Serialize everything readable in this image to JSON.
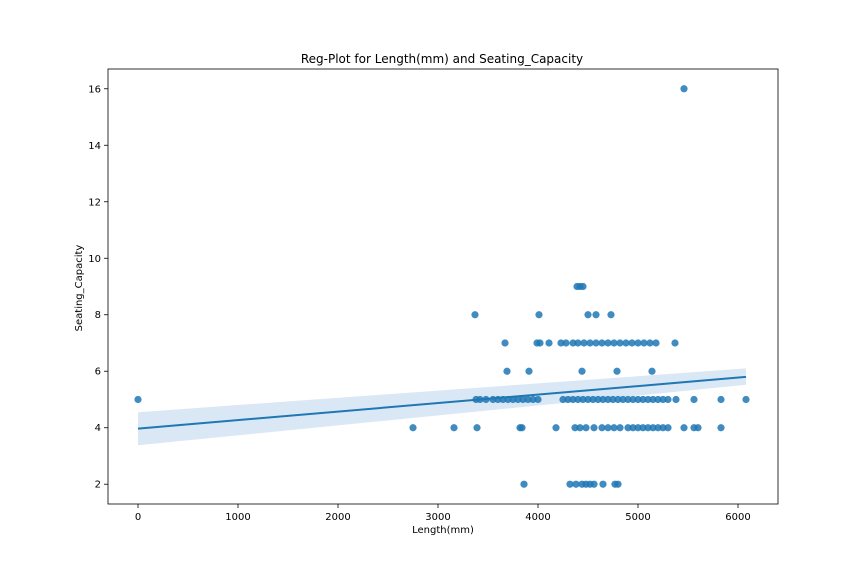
{
  "chart_data": {
    "type": "scatter",
    "title": "Reg-Plot for Length(mm) and Seating_Capacity",
    "xlabel": "Length(mm)",
    "ylabel": "Seating_Capacity",
    "xlim": [
      -300,
      6400
    ],
    "ylim": [
      1.3,
      16.7
    ],
    "xticks": [
      0,
      1000,
      2000,
      3000,
      4000,
      5000,
      6000
    ],
    "yticks": [
      2,
      4,
      6,
      8,
      10,
      12,
      14,
      16
    ],
    "grid": false,
    "colors": {
      "points": "#1f77b4",
      "line": "#1f77b4",
      "ci": "#c6dbef"
    },
    "series": [
      {
        "points": [
          [
            0,
            5
          ],
          [
            5460,
            16
          ],
          [
            3370,
            8
          ],
          [
            3860,
            2
          ],
          [
            2750,
            4
          ],
          [
            3160,
            4
          ],
          [
            3390,
            4
          ],
          [
            3820,
            4
          ],
          [
            3840,
            4
          ],
          [
            4180,
            4
          ],
          [
            4370,
            4
          ],
          [
            4420,
            4
          ],
          [
            4480,
            4
          ],
          [
            4560,
            4
          ],
          [
            4640,
            4
          ],
          [
            4700,
            4
          ],
          [
            4760,
            4
          ],
          [
            4820,
            4
          ],
          [
            4900,
            4
          ],
          [
            4950,
            4
          ],
          [
            5000,
            4
          ],
          [
            5050,
            4
          ],
          [
            5100,
            4
          ],
          [
            5150,
            4
          ],
          [
            5200,
            4
          ],
          [
            5250,
            4
          ],
          [
            5300,
            4
          ],
          [
            5460,
            4
          ],
          [
            5560,
            4
          ],
          [
            5600,
            4
          ],
          [
            5830,
            4
          ],
          [
            3380,
            5
          ],
          [
            3420,
            5
          ],
          [
            3480,
            5
          ],
          [
            3550,
            5
          ],
          [
            3600,
            5
          ],
          [
            3650,
            5
          ],
          [
            3700,
            5
          ],
          [
            3750,
            5
          ],
          [
            3800,
            5
          ],
          [
            3850,
            5
          ],
          [
            3900,
            5
          ],
          [
            3950,
            5
          ],
          [
            4000,
            5
          ],
          [
            4250,
            5
          ],
          [
            4300,
            5
          ],
          [
            4350,
            5
          ],
          [
            4400,
            5
          ],
          [
            4450,
            5
          ],
          [
            4500,
            5
          ],
          [
            4550,
            5
          ],
          [
            4600,
            5
          ],
          [
            4650,
            5
          ],
          [
            4700,
            5
          ],
          [
            4750,
            5
          ],
          [
            4800,
            5
          ],
          [
            4850,
            5
          ],
          [
            4900,
            5
          ],
          [
            4950,
            5
          ],
          [
            5000,
            5
          ],
          [
            5050,
            5
          ],
          [
            5100,
            5
          ],
          [
            5150,
            5
          ],
          [
            5200,
            5
          ],
          [
            5250,
            5
          ],
          [
            5300,
            5
          ],
          [
            5380,
            5
          ],
          [
            5560,
            5
          ],
          [
            5830,
            5
          ],
          [
            6080,
            5
          ],
          [
            3690,
            6
          ],
          [
            3910,
            6
          ],
          [
            4440,
            6
          ],
          [
            4790,
            6
          ],
          [
            5140,
            6
          ],
          [
            3670,
            7
          ],
          [
            3990,
            7
          ],
          [
            4020,
            7
          ],
          [
            4110,
            7
          ],
          [
            4230,
            7
          ],
          [
            4280,
            7
          ],
          [
            4350,
            7
          ],
          [
            4400,
            7
          ],
          [
            4460,
            7
          ],
          [
            4520,
            7
          ],
          [
            4580,
            7
          ],
          [
            4640,
            7
          ],
          [
            4700,
            7
          ],
          [
            4760,
            7
          ],
          [
            4820,
            7
          ],
          [
            4880,
            7
          ],
          [
            4940,
            7
          ],
          [
            5000,
            7
          ],
          [
            5060,
            7
          ],
          [
            5120,
            7
          ],
          [
            5180,
            7
          ],
          [
            5370,
            7
          ],
          [
            4010,
            8
          ],
          [
            4500,
            8
          ],
          [
            4580,
            8
          ],
          [
            4730,
            8
          ],
          [
            4390,
            9
          ],
          [
            4420,
            9
          ],
          [
            4450,
            9
          ],
          [
            4320,
            2
          ],
          [
            4380,
            2
          ],
          [
            4440,
            2
          ],
          [
            4480,
            2
          ],
          [
            4520,
            2
          ],
          [
            4560,
            2
          ],
          [
            4650,
            2
          ],
          [
            4770,
            2
          ],
          [
            4800,
            2
          ]
        ]
      }
    ],
    "regression": {
      "x": [
        0,
        6080
      ],
      "y": [
        3.97,
        5.8
      ],
      "ci_low": [
        3.38,
        5.52
      ],
      "ci_high": [
        4.55,
        6.1
      ]
    }
  }
}
